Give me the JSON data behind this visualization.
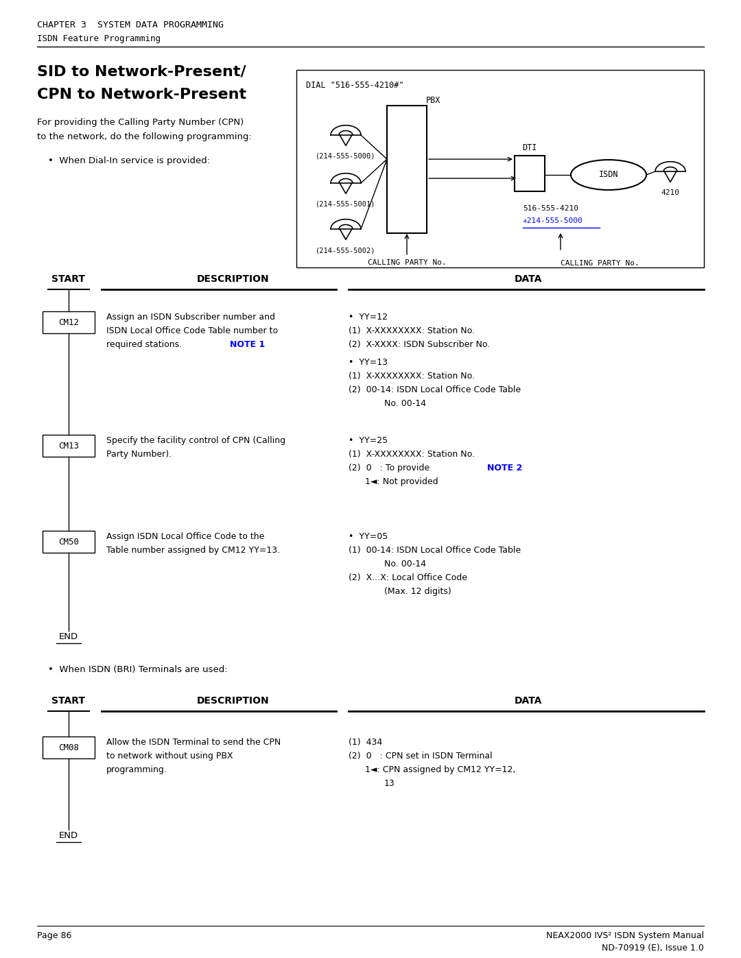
{
  "chapter_title": "CHAPTER 3  SYSTEM DATA PROGRAMMING",
  "chapter_subtitle": "ISDN Feature Programming",
  "section_title_line1": "SID to Network-Present/",
  "section_title_line2": "CPN to Network-Present",
  "footer_left": "Page 86",
  "footer_right_line1": "NEAX2000 IVS² ISDN System Manual",
  "footer_right_line2": "ND-70919 (E), Issue 1.0",
  "note_color": "#0000FF",
  "background_color": "#FFFFFF"
}
